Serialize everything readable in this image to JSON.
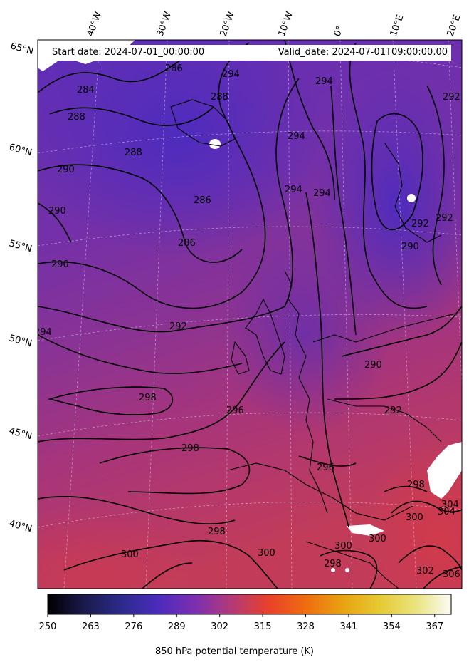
{
  "header": {
    "start_date": "Start date: 2024-07-01_00:00:00",
    "valid_date": "Valid_date: 2024-07-01T09:00:00.00"
  },
  "longitude_labels": [
    "40°W",
    "30°W",
    "20°W",
    "10°W",
    "0°",
    "10°E",
    "20°E"
  ],
  "latitude_labels": [
    "65°N",
    "60°N",
    "55°N",
    "50°N",
    "45°N",
    "40°N"
  ],
  "contour_labels": [
    "284",
    "286",
    "288",
    "290",
    "292",
    "294",
    "296",
    "298",
    "300",
    "302",
    "304",
    "306"
  ],
  "contour_label_instances": [
    "286",
    "294",
    "284",
    "288",
    "288",
    "294",
    "294",
    "290",
    "288",
    "292",
    "294",
    "294",
    "286",
    "290",
    "290",
    "286",
    "292",
    "292",
    "290",
    "294",
    "292",
    "290",
    "298",
    "296",
    "292",
    "298",
    "296",
    "298",
    "298",
    "300",
    "300",
    "300",
    "302",
    "304",
    "300",
    "304",
    "306",
    "298",
    "300"
  ],
  "colorbar": {
    "ticks": [
      "250",
      "263",
      "276",
      "289",
      "302",
      "315",
      "328",
      "341",
      "354",
      "367"
    ],
    "label": "850 hPa potential temperature (K)",
    "range": [
      250,
      372
    ],
    "colormap": "CMRmap",
    "stops": [
      "#000000",
      "#1a1a4d",
      "#2b2b8a",
      "#4b2bbd",
      "#7b2fb0",
      "#b23a78",
      "#e8402d",
      "#f06a10",
      "#e8a010",
      "#e6c830",
      "#eae27a",
      "#fbfbf5"
    ]
  },
  "colors": {
    "field_cool": "#5a2fb5",
    "field_mid": "#8a3296",
    "field_warm": "#c23a5a",
    "missing": "#ffffff"
  }
}
